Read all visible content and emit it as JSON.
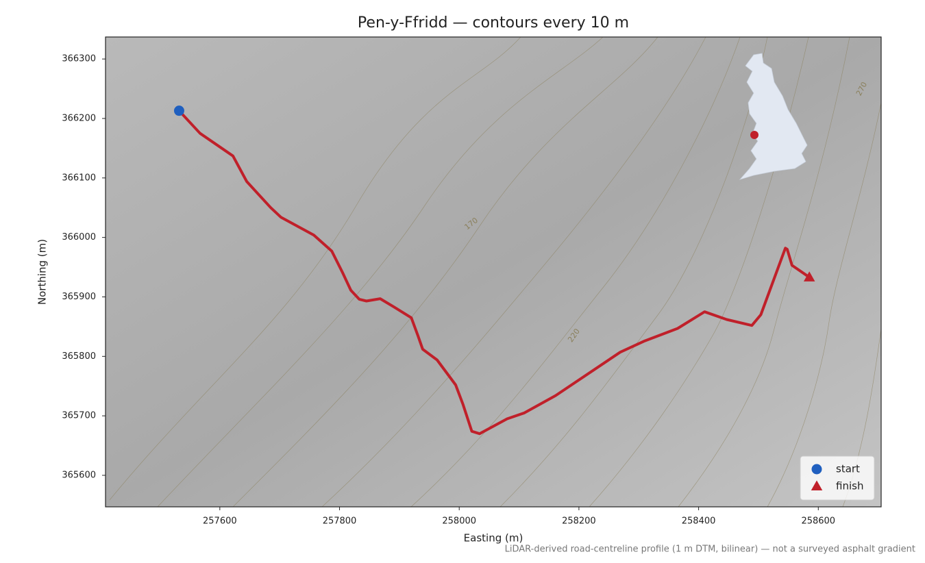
{
  "chart_data": {
    "type": "line",
    "title": "Pen-y-Ffridd — contours every 10 m",
    "xlabel": "Easting (m)",
    "ylabel": "Northing (m)",
    "footnote": "LiDAR-derived road-centreline profile (1 m DTM, bilinear) — not a surveyed asphalt gradient",
    "xlim": [
      257409,
      258705
    ],
    "ylim": [
      365547,
      366337
    ],
    "xticks": [
      257600,
      257800,
      258000,
      258200,
      258400,
      258600
    ],
    "yticks": [
      365600,
      365700,
      365800,
      365900,
      366000,
      366100,
      366200,
      366300
    ],
    "route": {
      "color": "#c0202a",
      "x": [
        257532,
        257567,
        257622,
        257645,
        257685,
        257702,
        257757,
        257787,
        257805,
        257819,
        257833,
        257845,
        257868,
        257891,
        257920,
        257931,
        257939,
        257963,
        257994,
        258006,
        258021,
        258034,
        258080,
        258109,
        258161,
        258269,
        258310,
        258365,
        258410,
        258447,
        258489,
        258504,
        258545,
        258548,
        258556,
        258585
      ],
      "values": [
        366213,
        366175,
        366137,
        366094,
        366050,
        366034,
        366004,
        365977,
        365941,
        365911,
        365896,
        365893,
        365897,
        365883,
        365865,
        365835,
        365812,
        365794,
        365752,
        365720,
        365674,
        365670,
        365695,
        365705,
        365734,
        365807,
        365826,
        365847,
        365875,
        365862,
        365852,
        365870,
        365982,
        365980,
        365953,
        365933
      ]
    },
    "markers": [
      {
        "name": "start",
        "marker": "circle",
        "color": "#1f5fbf",
        "x": 257532,
        "y": 366213
      },
      {
        "name": "finish",
        "marker": "triangle",
        "color": "#c0202a",
        "x": 258585,
        "y": 365933
      }
    ],
    "legend": "lower right",
    "contour_labels": [
      "170",
      "220",
      "270"
    ]
  }
}
